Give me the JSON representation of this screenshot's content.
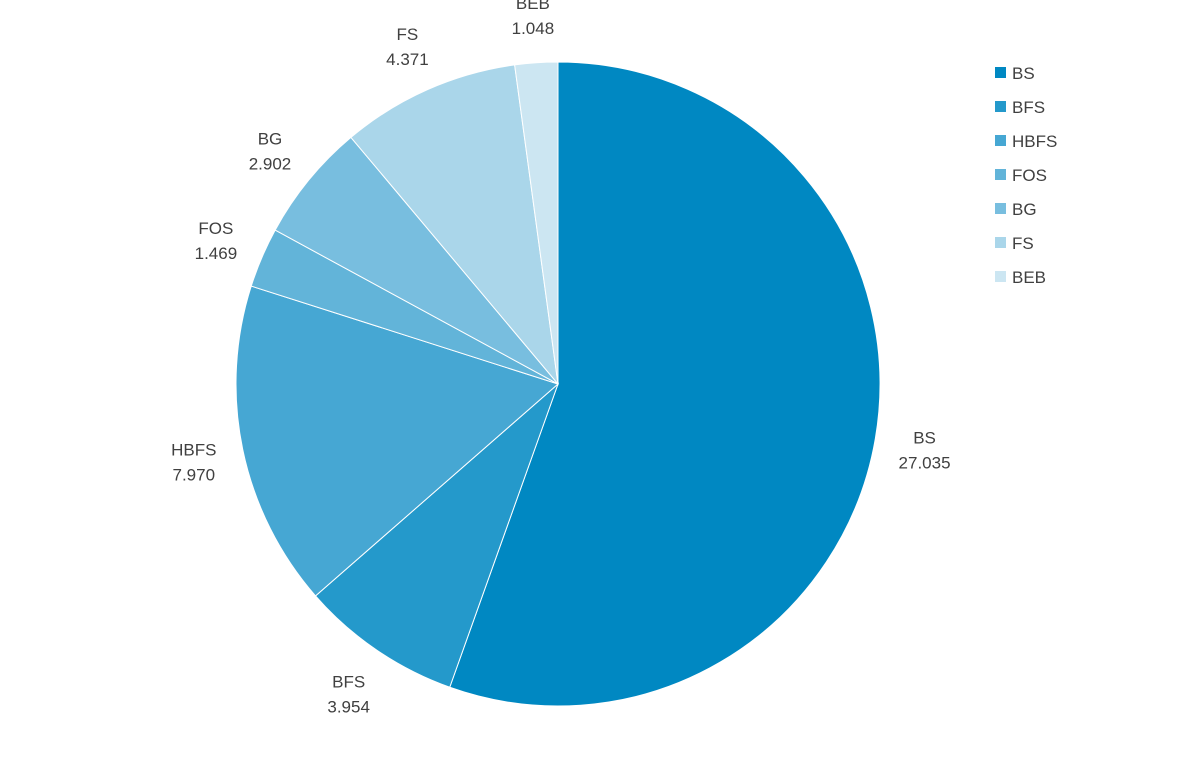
{
  "chart_data": {
    "type": "pie",
    "title": "",
    "legend_position": "right",
    "colors": [
      "#0088c2",
      "#2499cb",
      "#46a7d3",
      "#62b4d9",
      "#78bedf",
      "#aad6ea",
      "#cce6f2"
    ],
    "slices": [
      {
        "label": "BS",
        "value": 27.035,
        "value_label": "27.035"
      },
      {
        "label": "BFS",
        "value": 3.954,
        "value_label": "3.954"
      },
      {
        "label": "HBFS",
        "value": 7.97,
        "value_label": "7.970"
      },
      {
        "label": "FOS",
        "value": 1.469,
        "value_label": "1.469"
      },
      {
        "label": "BG",
        "value": 2.902,
        "value_label": "2.902"
      },
      {
        "label": "FS",
        "value": 4.371,
        "value_label": "4.371"
      },
      {
        "label": "BEB",
        "value": 1.048,
        "value_label": "1.048"
      }
    ]
  }
}
